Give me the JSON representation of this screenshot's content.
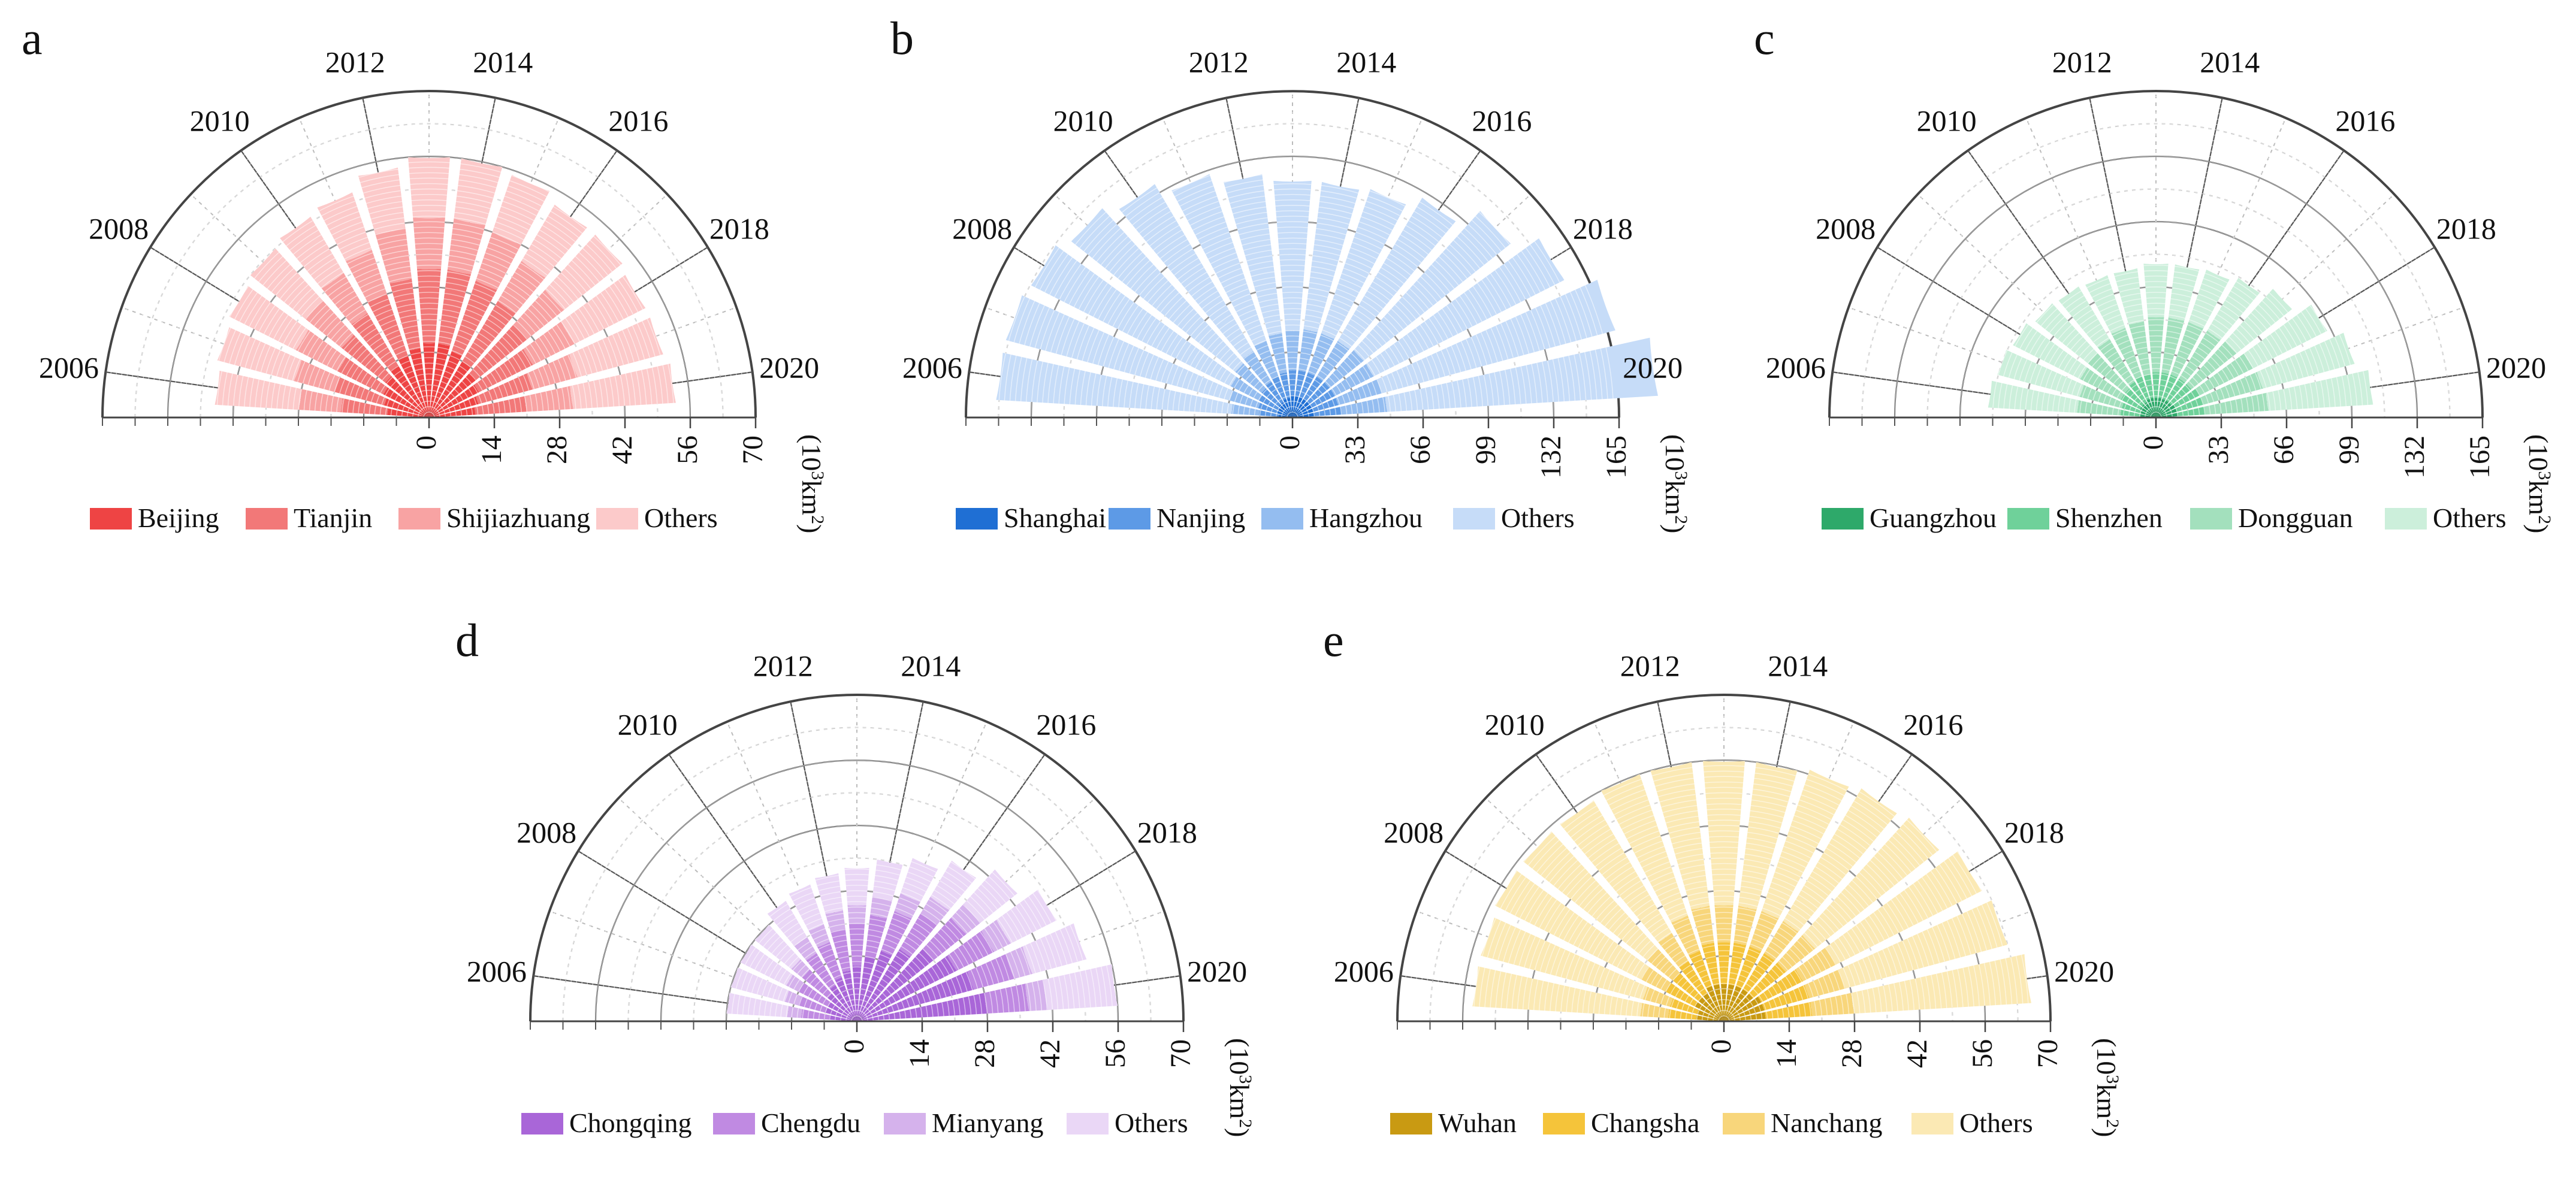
{
  "chart_data": [
    {
      "panel": "a",
      "type": "polar-stacked-bar",
      "theta_labels": [
        "2006",
        "2008",
        "2010",
        "2012",
        "2014",
        "2016",
        "2018",
        "2020"
      ],
      "years": [
        2006,
        2007,
        2008,
        2009,
        2010,
        2011,
        2012,
        2013,
        2014,
        2015,
        2016,
        2017,
        2018,
        2019,
        2020
      ],
      "radial_ticks": [
        "0",
        "14",
        "28",
        "42",
        "56",
        "70"
      ],
      "rmax": 70,
      "unit_base": "(10",
      "unit_exp": "3",
      "unit_tail": "km",
      "unit_exp2": "2",
      "unit_close": ")",
      "colors": [
        "#ee4444",
        "#f27878",
        "#f8a3a3",
        "#fccaca"
      ],
      "series": [
        {
          "name": "Beijing",
          "values": [
            9,
            10,
            11,
            12,
            13,
            14,
            15,
            16,
            16,
            15,
            14,
            13,
            12,
            11,
            10
          ]
        },
        {
          "name": "Tianjin",
          "values": [
            10,
            11,
            11,
            12,
            13,
            14,
            15,
            16,
            16,
            16,
            15,
            14,
            13,
            12,
            11
          ]
        },
        {
          "name": "Shijiazhuang",
          "values": [
            9,
            9,
            10,
            10,
            10,
            10,
            11,
            11,
            11,
            11,
            10,
            10,
            10,
            10,
            10
          ]
        },
        {
          "name": "Others",
          "values": [
            18,
            17,
            16,
            15,
            14,
            13,
            13,
            13,
            13,
            13,
            14,
            16,
            17,
            19,
            22
          ]
        }
      ]
    },
    {
      "panel": "b",
      "type": "polar-stacked-bar",
      "theta_labels": [
        "2006",
        "2008",
        "2010",
        "2012",
        "2014",
        "2016",
        "2018",
        "2020"
      ],
      "years": [
        2006,
        2007,
        2008,
        2009,
        2010,
        2011,
        2012,
        2013,
        2014,
        2015,
        2016,
        2017,
        2018,
        2019,
        2020
      ],
      "radial_ticks": [
        "0",
        "33",
        "66",
        "99",
        "132",
        "165"
      ],
      "rmax": 165,
      "unit_base": "(10",
      "unit_exp": "3",
      "unit_tail": "km",
      "unit_exp2": "2",
      "unit_close": ")",
      "colors": [
        "#1f6fd4",
        "#5d9ae6",
        "#94bdf0",
        "#c6dcf8"
      ],
      "series": [
        {
          "name": "Shanghai",
          "values": [
            7,
            8,
            8,
            9,
            9,
            10,
            10,
            11,
            11,
            11,
            11,
            11,
            11,
            11,
            11
          ]
        },
        {
          "name": "Nanjing",
          "values": [
            10,
            10,
            11,
            11,
            12,
            12,
            13,
            13,
            13,
            13,
            13,
            13,
            13,
            13,
            14
          ]
        },
        {
          "name": "Hangzhou",
          "values": [
            14,
            15,
            16,
            17,
            18,
            19,
            20,
            20,
            21,
            21,
            21,
            22,
            22,
            23,
            23
          ]
        },
        {
          "name": "Others",
          "values": [
            119,
            117,
            113,
            106,
            98,
            89,
            81,
            76,
            75,
            77,
            84,
            95,
            108,
            122,
            137
          ]
        }
      ]
    },
    {
      "panel": "c",
      "type": "polar-stacked-bar",
      "theta_labels": [
        "2006",
        "2008",
        "2010",
        "2012",
        "2014",
        "2016",
        "2018",
        "2020"
      ],
      "years": [
        2006,
        2007,
        2008,
        2009,
        2010,
        2011,
        2012,
        2013,
        2014,
        2015,
        2016,
        2017,
        2018,
        2019,
        2020
      ],
      "radial_ticks": [
        "0",
        "33",
        "66",
        "99",
        "132",
        "165"
      ],
      "rmax": 165,
      "unit_base": "(10",
      "unit_exp": "3",
      "unit_tail": "km",
      "unit_exp2": "2",
      "unit_close": ")",
      "colors": [
        "#2ea96a",
        "#6fd19a",
        "#a3e0bd",
        "#ccefdb"
      ],
      "series": [
        {
          "name": "Guangzhou",
          "values": [
            8,
            8,
            9,
            9,
            9,
            10,
            10,
            10,
            10,
            10,
            10,
            10,
            11,
            11,
            11
          ]
        },
        {
          "name": "Shenzhen",
          "values": [
            10,
            10,
            11,
            11,
            12,
            12,
            12,
            13,
            13,
            13,
            13,
            13,
            14,
            14,
            14
          ]
        },
        {
          "name": "Dongguan",
          "values": [
            22,
            22,
            23,
            24,
            25,
            26,
            27,
            28,
            28,
            28,
            28,
            29,
            30,
            31,
            32
          ]
        },
        {
          "name": "Others",
          "values": [
            45,
            43,
            38,
            34,
            31,
            28,
            27,
            27,
            27,
            28,
            31,
            36,
            42,
            48,
            53
          ]
        }
      ]
    },
    {
      "panel": "d",
      "type": "polar-stacked-bar",
      "theta_labels": [
        "2006",
        "2008",
        "2010",
        "2012",
        "2014",
        "2016",
        "2018",
        "2020"
      ],
      "years": [
        2006,
        2007,
        2008,
        2009,
        2010,
        2011,
        2012,
        2013,
        2014,
        2015,
        2016,
        2017,
        2018,
        2019,
        2020
      ],
      "radial_ticks": [
        "0",
        "14",
        "28",
        "42",
        "56",
        "70"
      ],
      "rmax": 70,
      "unit_base": "(10",
      "unit_exp": "3",
      "unit_tail": "km",
      "unit_exp2": "2",
      "unit_close": ")",
      "colors": [
        "#a966d8",
        "#c08ae2",
        "#d5b2ec",
        "#ead7f6"
      ],
      "series": [
        {
          "name": "Chongqing",
          "values": [
            6,
            7,
            7,
            8,
            9,
            10,
            11,
            12,
            14,
            16,
            18,
            21,
            24,
            26,
            28
          ]
        },
        {
          "name": "Chengdu",
          "values": [
            6,
            6,
            7,
            7,
            8,
            8,
            9,
            9,
            9,
            9,
            9,
            9,
            9,
            9,
            9
          ]
        },
        {
          "name": "Mianyang",
          "values": [
            3,
            3,
            3,
            3,
            4,
            4,
            4,
            4,
            4,
            4,
            4,
            4,
            4,
            4,
            4
          ]
        },
        {
          "name": "Others",
          "values": [
            13,
            12,
            11,
            10,
            9,
            9,
            8,
            8,
            8,
            8,
            9,
            10,
            11,
            12,
            15
          ]
        }
      ]
    },
    {
      "panel": "e",
      "type": "polar-stacked-bar",
      "theta_labels": [
        "2006",
        "2008",
        "2010",
        "2012",
        "2014",
        "2016",
        "2018",
        "2020"
      ],
      "years": [
        2006,
        2007,
        2008,
        2009,
        2010,
        2011,
        2012,
        2013,
        2014,
        2015,
        2016,
        2017,
        2018,
        2019,
        2020
      ],
      "radial_ticks": [
        "0",
        "14",
        "28",
        "42",
        "56",
        "70"
      ],
      "rmax": 70,
      "unit_base": "(10",
      "unit_exp": "3",
      "unit_tail": "km",
      "unit_exp2": "2",
      "unit_close": ")",
      "colors": [
        "#c99a12",
        "#f5c43a",
        "#f8d67b",
        "#fbe9b4"
      ],
      "series": [
        {
          "name": "Wuhan",
          "values": [
            6,
            6,
            7,
            7,
            7,
            8,
            8,
            8,
            8,
            8,
            8,
            8,
            9,
            9,
            9
          ]
        },
        {
          "name": "Changsha",
          "values": [
            6,
            6,
            7,
            7,
            8,
            8,
            9,
            9,
            9,
            9,
            9,
            9,
            10,
            10,
            10
          ]
        },
        {
          "name": "Nanchang",
          "values": [
            6,
            6,
            6,
            7,
            7,
            8,
            8,
            8,
            8,
            8,
            8,
            8,
            8,
            8,
            9
          ]
        },
        {
          "name": "Others",
          "values": [
            36,
            36,
            35,
            34,
            33,
            32,
            31,
            31,
            31,
            32,
            33,
            34,
            35,
            36,
            38
          ]
        }
      ]
    }
  ]
}
